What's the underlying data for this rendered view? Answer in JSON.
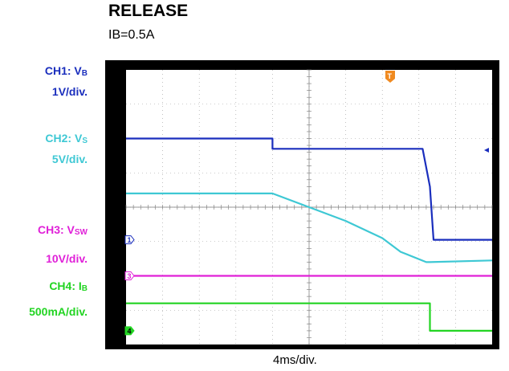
{
  "title": "RELEASE",
  "subtitle": "IB=0.5A",
  "xlabel": "4ms/div.",
  "channels": [
    {
      "id": "ch1",
      "label": "CH1: V",
      "sub": "B",
      "scale": "1V/div.",
      "color": "#1a2ebd",
      "marker": "1"
    },
    {
      "id": "ch2",
      "label": "CH2: V",
      "sub": "S",
      "scale": "5V/div.",
      "color": "#3ec8d4",
      "marker": ""
    },
    {
      "id": "ch3",
      "label": "CH3: V",
      "sub": "SW",
      "scale": "10V/div.",
      "color": "#e020d8",
      "marker": "3"
    },
    {
      "id": "ch4",
      "label": "CH4: I",
      "sub": "B",
      "scale": "500mA/div.",
      "color": "#22d422",
      "marker": "4"
    }
  ],
  "trigger_marker": "T",
  "chart_data": {
    "type": "line",
    "xlabel": "4ms/div.",
    "x_divisions": 10,
    "y_divisions": 8,
    "grid": true,
    "series": [
      {
        "name": "CH1: VB",
        "color": "#1a2ebd",
        "x": [
          0,
          4.0,
          4.0,
          8.1,
          8.3,
          8.4,
          10
        ],
        "y": [
          6.0,
          6.0,
          5.7,
          5.7,
          4.6,
          3.05,
          3.05
        ]
      },
      {
        "name": "CH2: VS",
        "color": "#3ec8d4",
        "x": [
          0,
          4.0,
          5.0,
          6.0,
          7.0,
          7.5,
          8.2,
          8.3,
          10
        ],
        "y": [
          4.4,
          4.4,
          4.0,
          3.6,
          3.1,
          2.7,
          2.4,
          2.4,
          2.45
        ]
      },
      {
        "name": "CH3: VSW",
        "color": "#e020d8",
        "x": [
          0,
          10
        ],
        "y": [
          2.0,
          2.0
        ]
      },
      {
        "name": "CH4: IB",
        "color": "#22d422",
        "x": [
          0,
          8.3,
          8.3,
          10
        ],
        "y": [
          1.2,
          1.2,
          0.4,
          0.4
        ]
      }
    ]
  }
}
